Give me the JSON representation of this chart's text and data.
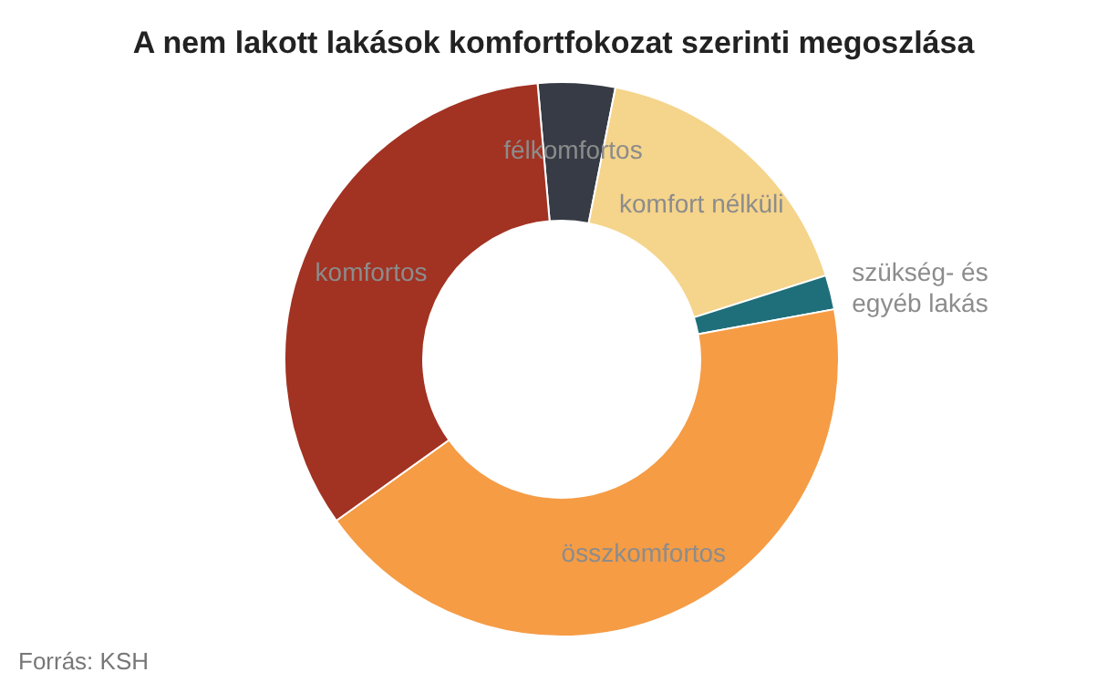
{
  "chart_data": {
    "type": "donut",
    "title": "A nem lakott lakások komfortfokozat szerinti megoszlása",
    "categories": [
      "félkomfortos",
      "komfort nélküli",
      "szükség- és egyéb lakás",
      "összkomfortos",
      "komfortos"
    ],
    "values": [
      4.5,
      17,
      2,
      43,
      33.5
    ],
    "colors": [
      "#363b45",
      "#f5d48b",
      "#1f6f7a",
      "#f59c45",
      "#a23222"
    ],
    "annotations": [
      "Forrás: KSH"
    ]
  }
}
